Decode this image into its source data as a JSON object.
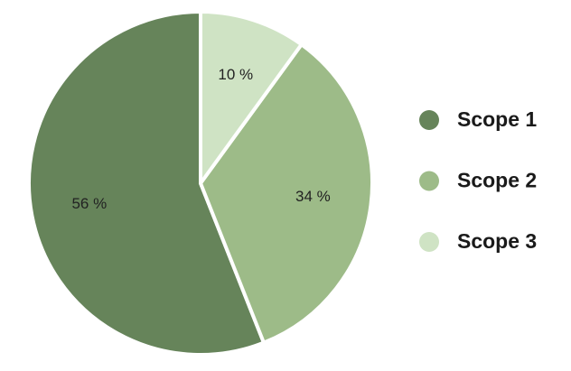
{
  "chart_data": {
    "type": "pie",
    "categories": [
      "Scope 1",
      "Scope 2",
      "Scope 3"
    ],
    "values": [
      56,
      34,
      10
    ],
    "value_labels": [
      "56 %",
      "34 %",
      "10 %"
    ],
    "colors": [
      "#66845a",
      "#9dbb88",
      "#cfe3c4"
    ],
    "legend": "right"
  }
}
